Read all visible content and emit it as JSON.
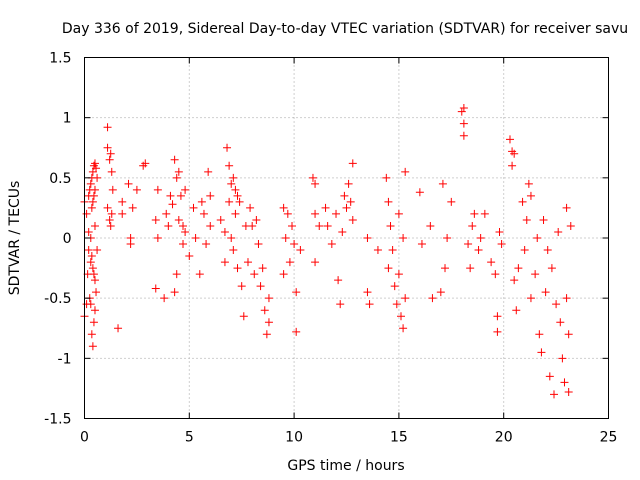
{
  "chart_data": {
    "type": "scatter",
    "title": "Day 336 of 2019, Sidereal Day-to-day VTEC variation (SDTVAR) for receiver savu",
    "xlabel": "GPS time / hours",
    "ylabel": "SDTVAR / TECUs",
    "xlim": [
      0,
      25
    ],
    "ylim": [
      -1.5,
      1.5
    ],
    "xticks": [
      0,
      5,
      10,
      15,
      20,
      25
    ],
    "xtick_labels": [
      "0",
      "5",
      "10",
      "15",
      "20",
      "25"
    ],
    "yticks": [
      -1.5,
      -1,
      -0.5,
      0,
      0.5,
      1,
      1.5
    ],
    "ytick_labels": [
      "-1.5",
      "-1",
      "-0.5",
      "0",
      "0.5",
      "1",
      "1.5"
    ],
    "grid": true,
    "marker": "+",
    "color": "#ff0000",
    "series": [
      {
        "name": "SDTVAR",
        "points": [
          [
            0.0,
            0.3
          ],
          [
            0.0,
            -0.65
          ],
          [
            0.1,
            0.2
          ],
          [
            0.1,
            -0.55
          ],
          [
            0.15,
            -0.3
          ],
          [
            0.2,
            0.05
          ],
          [
            0.2,
            -0.1
          ],
          [
            0.2,
            0.35
          ],
          [
            0.25,
            0.4
          ],
          [
            0.25,
            -0.5
          ],
          [
            0.3,
            0.45
          ],
          [
            0.3,
            0.0
          ],
          [
            0.3,
            -0.2
          ],
          [
            0.3,
            -0.55
          ],
          [
            0.35,
            0.5
          ],
          [
            0.35,
            0.25
          ],
          [
            0.35,
            -0.15
          ],
          [
            0.35,
            -0.8
          ],
          [
            0.4,
            0.55
          ],
          [
            0.4,
            0.3
          ],
          [
            0.4,
            -0.25
          ],
          [
            0.4,
            -0.9
          ],
          [
            0.45,
            0.6
          ],
          [
            0.45,
            0.35
          ],
          [
            0.45,
            -0.3
          ],
          [
            0.45,
            -0.7
          ],
          [
            0.5,
            0.62
          ],
          [
            0.5,
            0.4
          ],
          [
            0.5,
            0.1
          ],
          [
            0.5,
            -0.35
          ],
          [
            0.5,
            -0.6
          ],
          [
            0.55,
            0.58
          ],
          [
            0.55,
            -0.45
          ],
          [
            0.6,
            0.5
          ],
          [
            0.6,
            -0.1
          ],
          [
            1.1,
            0.92
          ],
          [
            1.1,
            0.75
          ],
          [
            1.1,
            0.25
          ],
          [
            1.2,
            0.65
          ],
          [
            1.2,
            0.15
          ],
          [
            1.25,
            0.7
          ],
          [
            1.25,
            0.1
          ],
          [
            1.3,
            0.55
          ],
          [
            1.3,
            0.2
          ],
          [
            1.35,
            0.4
          ],
          [
            1.6,
            -0.75
          ],
          [
            1.8,
            0.3
          ],
          [
            1.8,
            0.2
          ],
          [
            2.1,
            0.45
          ],
          [
            2.2,
            0.0
          ],
          [
            2.2,
            -0.05
          ],
          [
            2.3,
            0.25
          ],
          [
            2.5,
            0.4
          ],
          [
            2.8,
            0.6
          ],
          [
            2.9,
            0.62
          ],
          [
            3.4,
            0.15
          ],
          [
            3.4,
            -0.42
          ],
          [
            3.5,
            0.4
          ],
          [
            3.5,
            0.0
          ],
          [
            3.8,
            -0.5
          ],
          [
            3.9,
            0.2
          ],
          [
            4.0,
            0.1
          ],
          [
            4.1,
            0.35
          ],
          [
            4.2,
            0.28
          ],
          [
            4.3,
            -0.45
          ],
          [
            4.3,
            0.65
          ],
          [
            4.4,
            0.5
          ],
          [
            4.4,
            -0.3
          ],
          [
            4.5,
            0.55
          ],
          [
            4.5,
            0.15
          ],
          [
            4.6,
            0.35
          ],
          [
            4.7,
            0.1
          ],
          [
            4.7,
            -0.05
          ],
          [
            4.8,
            0.4
          ],
          [
            4.8,
            0.05
          ],
          [
            5.0,
            -0.15
          ],
          [
            5.2,
            0.25
          ],
          [
            5.3,
            0.0
          ],
          [
            5.5,
            -0.3
          ],
          [
            5.6,
            0.3
          ],
          [
            5.7,
            0.2
          ],
          [
            5.8,
            -0.05
          ],
          [
            5.9,
            0.55
          ],
          [
            6.0,
            0.35
          ],
          [
            6.0,
            0.1
          ],
          [
            6.5,
            0.15
          ],
          [
            6.7,
            0.05
          ],
          [
            6.7,
            -0.2
          ],
          [
            6.8,
            0.75
          ],
          [
            6.9,
            0.6
          ],
          [
            6.9,
            0.3
          ],
          [
            7.0,
            0.45
          ],
          [
            7.0,
            0.0
          ],
          [
            7.1,
            0.5
          ],
          [
            7.1,
            -0.1
          ],
          [
            7.2,
            0.4
          ],
          [
            7.2,
            0.2
          ],
          [
            7.3,
            0.35
          ],
          [
            7.3,
            -0.25
          ],
          [
            7.4,
            0.3
          ],
          [
            7.5,
            -0.4
          ],
          [
            7.6,
            -0.65
          ],
          [
            7.7,
            0.1
          ],
          [
            7.8,
            -0.2
          ],
          [
            7.9,
            0.25
          ],
          [
            8.0,
            0.1
          ],
          [
            8.1,
            -0.3
          ],
          [
            8.2,
            0.15
          ],
          [
            8.3,
            -0.05
          ],
          [
            8.4,
            -0.4
          ],
          [
            8.5,
            -0.25
          ],
          [
            8.6,
            -0.6
          ],
          [
            8.7,
            -0.8
          ],
          [
            8.8,
            -0.5
          ],
          [
            8.8,
            -0.7
          ],
          [
            9.5,
            0.25
          ],
          [
            9.5,
            -0.3
          ],
          [
            9.6,
            0.0
          ],
          [
            9.7,
            0.2
          ],
          [
            9.8,
            -0.2
          ],
          [
            9.9,
            0.1
          ],
          [
            10.0,
            -0.05
          ],
          [
            10.1,
            -0.45
          ],
          [
            10.1,
            -0.78
          ],
          [
            10.3,
            -0.1
          ],
          [
            10.9,
            0.5
          ],
          [
            11.0,
            0.45
          ],
          [
            11.0,
            0.2
          ],
          [
            11.0,
            -0.2
          ],
          [
            11.2,
            0.1
          ],
          [
            11.5,
            0.25
          ],
          [
            11.6,
            0.1
          ],
          [
            11.8,
            -0.05
          ],
          [
            12.0,
            0.2
          ],
          [
            12.1,
            -0.35
          ],
          [
            12.2,
            -0.55
          ],
          [
            12.3,
            0.05
          ],
          [
            12.4,
            0.35
          ],
          [
            12.5,
            0.25
          ],
          [
            12.6,
            0.45
          ],
          [
            12.7,
            0.3
          ],
          [
            12.8,
            0.62
          ],
          [
            12.8,
            0.15
          ],
          [
            13.5,
            -0.45
          ],
          [
            13.5,
            0.0
          ],
          [
            13.6,
            -0.55
          ],
          [
            14.0,
            -0.1
          ],
          [
            14.4,
            0.5
          ],
          [
            14.5,
            0.3
          ],
          [
            14.5,
            -0.25
          ],
          [
            14.6,
            0.1
          ],
          [
            14.7,
            -0.1
          ],
          [
            14.8,
            -0.4
          ],
          [
            14.9,
            -0.55
          ],
          [
            15.0,
            0.2
          ],
          [
            15.0,
            -0.3
          ],
          [
            15.1,
            -0.65
          ],
          [
            15.2,
            0.0
          ],
          [
            15.2,
            -0.75
          ],
          [
            15.3,
            -0.5
          ],
          [
            15.3,
            0.55
          ],
          [
            16.0,
            0.38
          ],
          [
            16.1,
            -0.05
          ],
          [
            16.5,
            0.1
          ],
          [
            16.6,
            -0.5
          ],
          [
            17.0,
            -0.45
          ],
          [
            17.1,
            0.45
          ],
          [
            17.2,
            -0.25
          ],
          [
            17.3,
            0.0
          ],
          [
            17.5,
            0.3
          ],
          [
            18.0,
            1.05
          ],
          [
            18.1,
            1.08
          ],
          [
            18.1,
            0.85
          ],
          [
            18.1,
            0.95
          ],
          [
            18.3,
            -0.05
          ],
          [
            18.4,
            -0.25
          ],
          [
            18.5,
            0.1
          ],
          [
            18.6,
            0.2
          ],
          [
            18.8,
            -0.1
          ],
          [
            18.9,
            0.0
          ],
          [
            19.1,
            0.2
          ],
          [
            19.4,
            -0.2
          ],
          [
            19.6,
            -0.3
          ],
          [
            19.7,
            -0.65
          ],
          [
            19.7,
            -0.78
          ],
          [
            19.8,
            0.05
          ],
          [
            19.9,
            -0.05
          ],
          [
            20.3,
            0.82
          ],
          [
            20.4,
            0.72
          ],
          [
            20.4,
            0.6
          ],
          [
            20.5,
            -0.35
          ],
          [
            20.5,
            0.7
          ],
          [
            20.6,
            -0.6
          ],
          [
            20.7,
            -0.25
          ],
          [
            20.9,
            0.3
          ],
          [
            21.0,
            -0.1
          ],
          [
            21.1,
            0.15
          ],
          [
            21.2,
            0.45
          ],
          [
            21.3,
            -0.5
          ],
          [
            21.3,
            0.35
          ],
          [
            21.5,
            -0.3
          ],
          [
            21.6,
            0.0
          ],
          [
            21.7,
            -0.8
          ],
          [
            21.8,
            -0.95
          ],
          [
            21.9,
            0.15
          ],
          [
            22.0,
            -0.45
          ],
          [
            22.1,
            -0.1
          ],
          [
            22.2,
            -1.15
          ],
          [
            22.3,
            -0.25
          ],
          [
            22.4,
            -1.3
          ],
          [
            22.5,
            -0.55
          ],
          [
            22.6,
            0.05
          ],
          [
            22.7,
            -0.7
          ],
          [
            22.8,
            -1.0
          ],
          [
            22.9,
            -1.2
          ],
          [
            23.0,
            0.25
          ],
          [
            23.0,
            -0.5
          ],
          [
            23.1,
            -1.28
          ],
          [
            23.1,
            -0.8
          ],
          [
            23.2,
            0.1
          ]
        ]
      }
    ]
  }
}
